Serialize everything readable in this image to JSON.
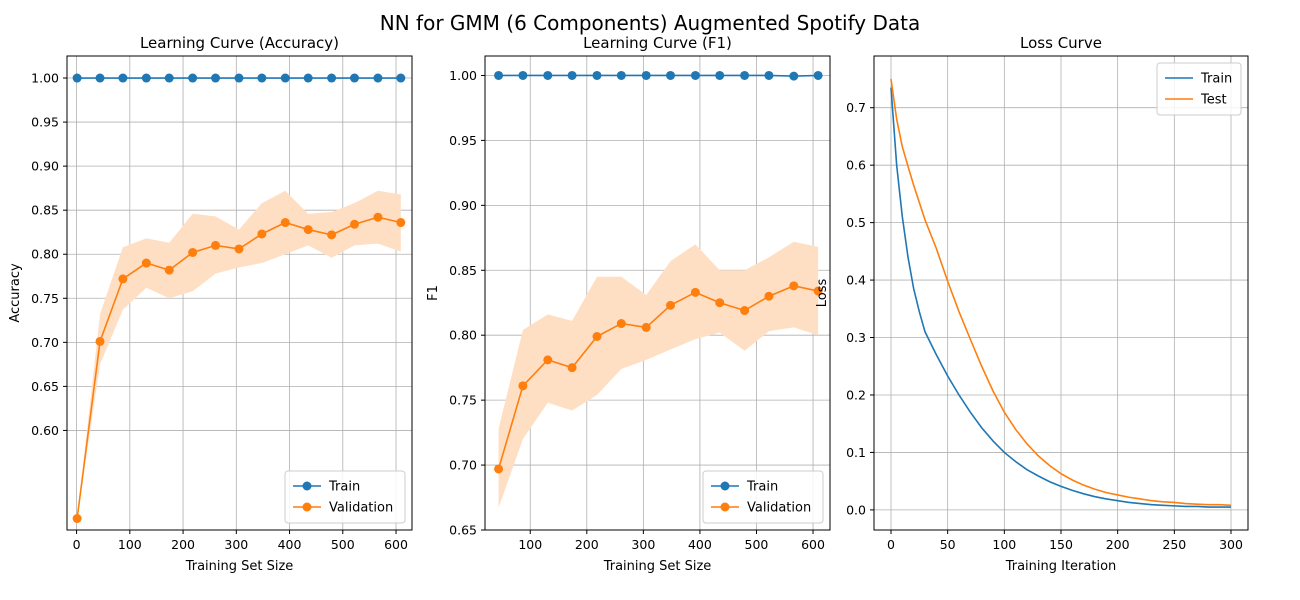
{
  "title": "NN for GMM (6 Components) Augmented Spotify Data",
  "colors": {
    "train": "#1f77b4",
    "validation": "#ff7f0e",
    "band": "#ffdfc4",
    "grid": "#b0b0b0"
  },
  "chart_data": [
    {
      "type": "line",
      "title": "Learning Curve (Accuracy)",
      "xlabel": "Training Set Size",
      "ylabel": "Accuracy",
      "xlim": [
        -18,
        630
      ],
      "ylim": [
        0.487,
        1.025
      ],
      "xticks": [
        0,
        100,
        200,
        300,
        400,
        500,
        600
      ],
      "yticks": [
        0.6,
        0.65,
        0.7,
        0.75,
        0.8,
        0.85,
        0.9,
        0.95,
        1.0
      ],
      "grid": true,
      "legend": "lower-right",
      "x": [
        1,
        44,
        87,
        131,
        174,
        218,
        261,
        305,
        348,
        392,
        435,
        479,
        522,
        566,
        609
      ],
      "series": [
        {
          "name": "Train",
          "values": [
            1.0,
            1.0,
            1.0,
            1.0,
            1.0,
            1.0,
            1.0,
            1.0,
            1.0,
            1.0,
            1.0,
            1.0,
            1.0,
            1.0,
            1.0
          ]
        },
        {
          "name": "Validation",
          "values": [
            0.5,
            0.701,
            0.772,
            0.79,
            0.782,
            0.802,
            0.81,
            0.806,
            0.823,
            0.836,
            0.828,
            0.822,
            0.834,
            0.842,
            0.836
          ],
          "band_upper": [
            0.5,
            0.732,
            0.808,
            0.818,
            0.813,
            0.846,
            0.843,
            0.828,
            0.858,
            0.872,
            0.846,
            0.848,
            0.858,
            0.872,
            0.868
          ],
          "band_lower": [
            0.5,
            0.675,
            0.737,
            0.762,
            0.75,
            0.758,
            0.778,
            0.785,
            0.79,
            0.8,
            0.81,
            0.796,
            0.81,
            0.812,
            0.803
          ]
        }
      ]
    },
    {
      "type": "line",
      "title": "Learning Curve (F1)",
      "xlabel": "Training Set Size",
      "ylabel": "F1",
      "xlim": [
        20,
        630
      ],
      "ylim": [
        0.65,
        1.015
      ],
      "xticks": [
        100,
        200,
        300,
        400,
        500,
        600
      ],
      "yticks": [
        0.65,
        0.7,
        0.75,
        0.8,
        0.85,
        0.9,
        0.95,
        1.0
      ],
      "grid": true,
      "legend": "lower-right",
      "x": [
        44,
        87,
        131,
        174,
        218,
        261,
        305,
        348,
        392,
        435,
        479,
        522,
        566,
        609
      ],
      "series": [
        {
          "name": "Train",
          "values": [
            1.0,
            1.0,
            1.0,
            1.0,
            1.0,
            1.0,
            1.0,
            1.0,
            1.0,
            1.0,
            1.0,
            1.0,
            0.9995,
            1.0
          ]
        },
        {
          "name": "Validation",
          "values": [
            0.697,
            0.761,
            0.781,
            0.775,
            0.799,
            0.809,
            0.806,
            0.823,
            0.833,
            0.825,
            0.819,
            0.83,
            0.838,
            0.834
          ],
          "band_upper": [
            0.728,
            0.804,
            0.816,
            0.811,
            0.845,
            0.845,
            0.831,
            0.857,
            0.87,
            0.85,
            0.85,
            0.86,
            0.872,
            0.868
          ],
          "band_lower": [
            0.667,
            0.72,
            0.748,
            0.742,
            0.754,
            0.774,
            0.781,
            0.789,
            0.797,
            0.802,
            0.788,
            0.803,
            0.806,
            0.8
          ]
        }
      ]
    },
    {
      "type": "line",
      "title": "Loss Curve",
      "xlabel": "Training Iteration",
      "ylabel": "Loss",
      "xlim": [
        -15,
        315
      ],
      "ylim": [
        -0.035,
        0.79
      ],
      "xticks": [
        0,
        50,
        100,
        150,
        200,
        250,
        300
      ],
      "yticks": [
        0.0,
        0.1,
        0.2,
        0.3,
        0.4,
        0.5,
        0.6,
        0.7
      ],
      "grid": true,
      "legend": "top-right",
      "x": [
        0,
        5,
        10,
        15,
        20,
        25,
        30,
        40,
        50,
        60,
        70,
        80,
        90,
        100,
        110,
        120,
        130,
        140,
        150,
        160,
        170,
        180,
        190,
        200,
        210,
        220,
        230,
        240,
        250,
        260,
        270,
        280,
        290,
        300
      ],
      "series": [
        {
          "name": "Train",
          "values": [
            0.735,
            0.6,
            0.51,
            0.44,
            0.385,
            0.345,
            0.31,
            0.27,
            0.233,
            0.2,
            0.17,
            0.143,
            0.12,
            0.1,
            0.084,
            0.07,
            0.059,
            0.049,
            0.041,
            0.034,
            0.028,
            0.023,
            0.019,
            0.016,
            0.013,
            0.011,
            0.009,
            0.008,
            0.007,
            0.006,
            0.006,
            0.005,
            0.005,
            0.005
          ]
        },
        {
          "name": "Test",
          "values": [
            0.75,
            0.68,
            0.632,
            0.598,
            0.565,
            0.535,
            0.505,
            0.455,
            0.398,
            0.345,
            0.297,
            0.25,
            0.207,
            0.17,
            0.14,
            0.115,
            0.094,
            0.077,
            0.063,
            0.052,
            0.043,
            0.036,
            0.03,
            0.026,
            0.022,
            0.019,
            0.016,
            0.014,
            0.013,
            0.011,
            0.01,
            0.009,
            0.009,
            0.008
          ]
        }
      ]
    }
  ]
}
